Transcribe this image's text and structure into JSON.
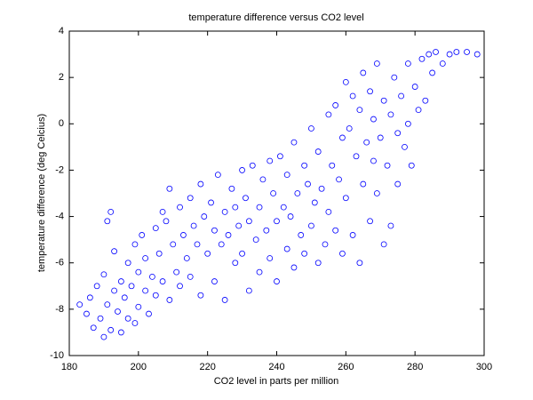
{
  "chart_data": {
    "type": "scatter",
    "title": "temperature difference versus CO2 level",
    "x_label": "CO2 level in parts per million",
    "y_label": "temperature difference (deg Celcius)",
    "color": "#0000ff",
    "xlim": [
      180,
      300
    ],
    "xticks": [
      180,
      200,
      220,
      240,
      260,
      280,
      300
    ],
    "ylim": [
      -10,
      4
    ],
    "yticks": [
      -10,
      -8,
      -6,
      -4,
      -2,
      0,
      2,
      4
    ],
    "grid": false,
    "x": [
      183,
      185,
      186,
      187,
      188,
      189,
      190,
      190,
      191,
      191,
      192,
      192,
      193,
      193,
      194,
      195,
      195,
      196,
      197,
      197,
      198,
      199,
      199,
      200,
      200,
      201,
      202,
      202,
      203,
      204,
      205,
      205,
      206,
      207,
      207,
      208,
      209,
      209,
      210,
      211,
      212,
      212,
      213,
      214,
      215,
      215,
      216,
      217,
      218,
      218,
      219,
      220,
      221,
      222,
      222,
      223,
      224,
      225,
      225,
      226,
      227,
      228,
      228,
      229,
      230,
      230,
      231,
      232,
      232,
      233,
      234,
      235,
      235,
      236,
      237,
      238,
      238,
      239,
      240,
      240,
      241,
      242,
      243,
      243,
      244,
      245,
      245,
      246,
      247,
      248,
      248,
      249,
      250,
      250,
      251,
      252,
      252,
      253,
      254,
      255,
      255,
      256,
      257,
      257,
      258,
      259,
      259,
      260,
      260,
      261,
      262,
      262,
      263,
      264,
      264,
      265,
      265,
      266,
      267,
      267,
      268,
      268,
      269,
      269,
      270,
      271,
      271,
      272,
      273,
      273,
      274,
      275,
      275,
      276,
      277,
      278,
      278,
      279,
      280,
      281,
      282,
      283,
      284,
      285,
      286,
      288,
      290,
      292,
      295,
      298
    ],
    "y": [
      -7.8,
      -8.2,
      -7.5,
      -8.8,
      -7.0,
      -8.4,
      -9.2,
      -6.5,
      -7.8,
      -4.2,
      -8.9,
      -3.8,
      -7.2,
      -5.5,
      -8.1,
      -6.8,
      -9.0,
      -7.5,
      -8.4,
      -6.0,
      -7.0,
      -8.6,
      -5.2,
      -6.4,
      -7.9,
      -4.8,
      -7.2,
      -5.8,
      -8.2,
      -6.6,
      -4.5,
      -7.4,
      -5.6,
      -3.8,
      -6.8,
      -4.2,
      -7.6,
      -2.8,
      -5.2,
      -6.4,
      -3.6,
      -7.0,
      -4.8,
      -5.8,
      -3.2,
      -6.6,
      -4.4,
      -5.2,
      -2.6,
      -7.4,
      -4.0,
      -5.6,
      -3.4,
      -6.8,
      -4.6,
      -2.2,
      -5.2,
      -3.8,
      -7.6,
      -4.8,
      -2.8,
      -6.0,
      -3.6,
      -4.4,
      -2.0,
      -5.6,
      -3.2,
      -7.2,
      -4.2,
      -1.8,
      -5.0,
      -3.6,
      -6.4,
      -2.4,
      -4.6,
      -1.6,
      -5.8,
      -3.0,
      -4.2,
      -6.8,
      -1.4,
      -3.6,
      -5.4,
      -2.2,
      -4.0,
      -0.8,
      -6.2,
      -3.0,
      -4.8,
      -1.8,
      -5.6,
      -2.6,
      -0.2,
      -4.4,
      -3.4,
      -6.0,
      -1.2,
      -2.8,
      -5.2,
      0.4,
      -3.8,
      -1.8,
      -4.6,
      0.8,
      -2.4,
      -5.6,
      -0.6,
      1.8,
      -3.2,
      -0.2,
      -4.8,
      1.2,
      -1.4,
      -6.0,
      0.6,
      -2.6,
      2.2,
      -0.8,
      -4.2,
      1.4,
      -1.6,
      0.2,
      -3.0,
      2.6,
      -0.6,
      -5.2,
      1.0,
      -1.8,
      0.4,
      -4.4,
      2.0,
      -0.4,
      -2.6,
      1.2,
      -1.0,
      2.6,
      0.0,
      -1.8,
      1.6,
      0.6,
      2.8,
      1.0,
      3.0,
      2.2,
      3.1,
      2.6,
      3.0,
      3.1,
      3.1,
      3.0
    ]
  }
}
